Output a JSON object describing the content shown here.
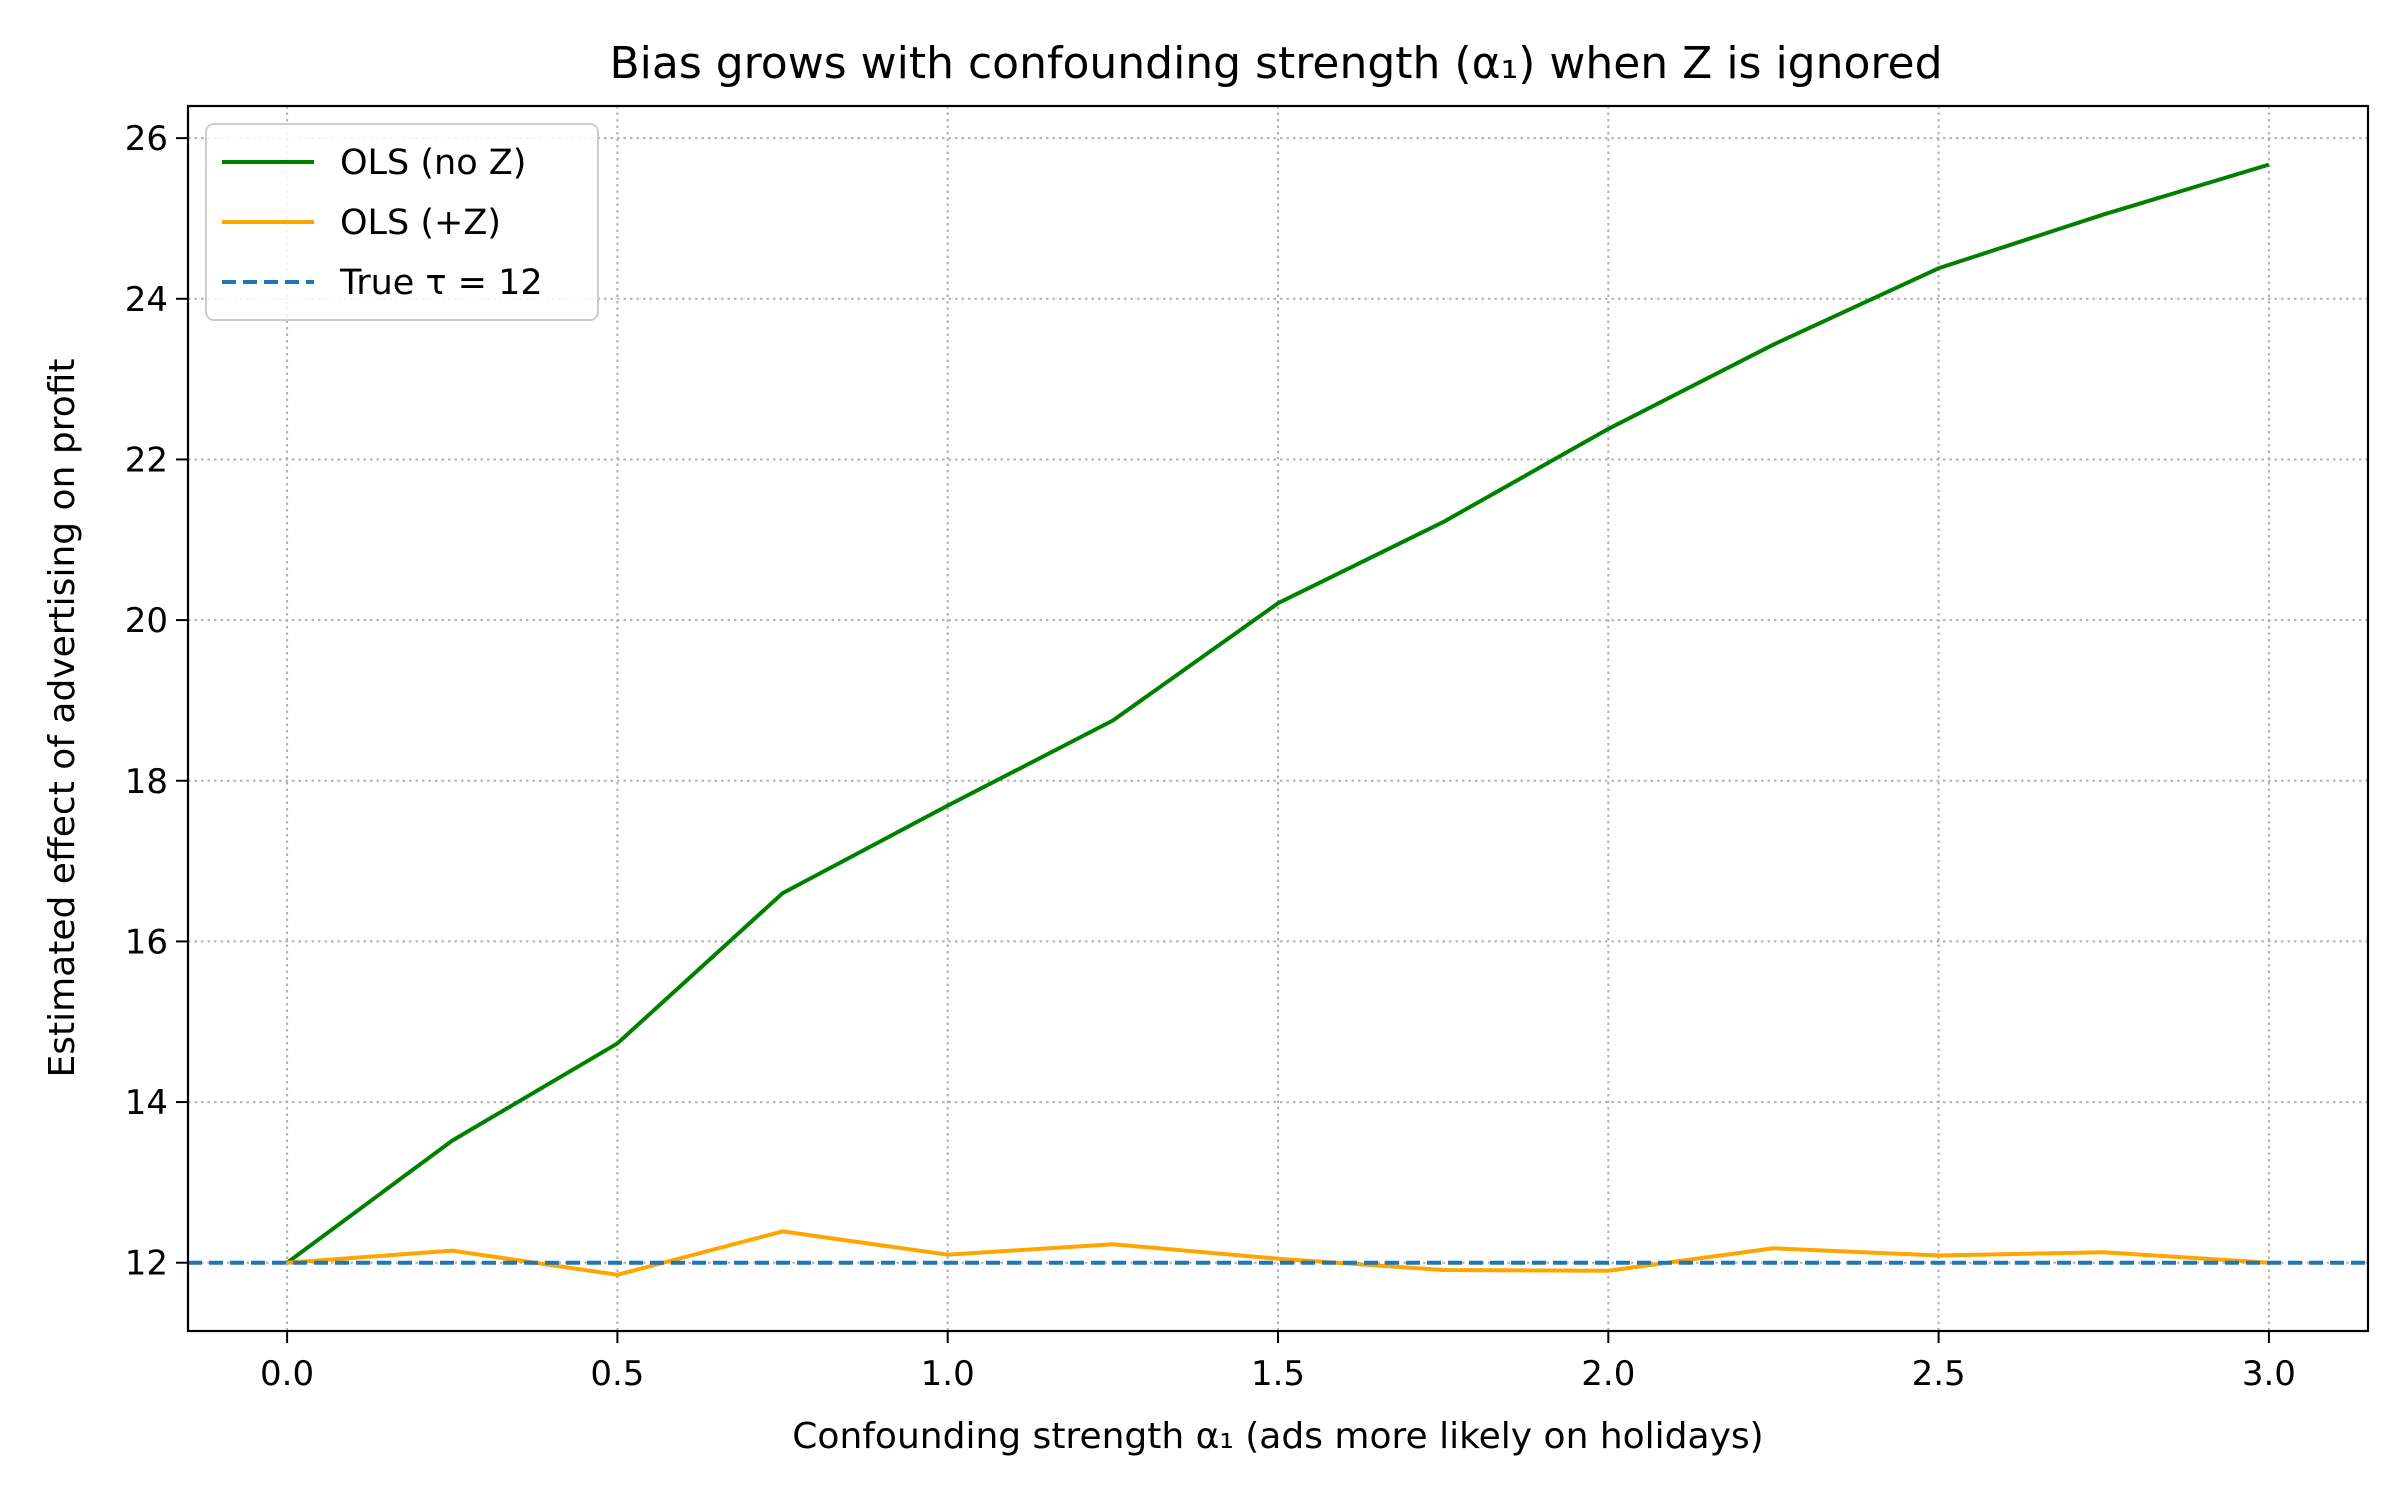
{
  "chart_data": {
    "type": "line",
    "title": "Bias grows with confounding strength (α₁) when Z is ignored",
    "xlabel": "Confounding strength  α₁  (ads more likely on holidays)",
    "ylabel": "Estimated effect of advertising on profit",
    "xlim": [
      -0.15,
      3.15
    ],
    "ylim": [
      11.15,
      26.4
    ],
    "xticks": [
      0.0,
      0.5,
      1.0,
      1.5,
      2.0,
      2.5,
      3.0
    ],
    "xtick_labels": [
      "0.0",
      "0.5",
      "1.0",
      "1.5",
      "2.0",
      "2.5",
      "3.0"
    ],
    "yticks": [
      12,
      14,
      16,
      18,
      20,
      22,
      24,
      26
    ],
    "ytick_labels": [
      "12",
      "14",
      "16",
      "18",
      "20",
      "22",
      "24",
      "26"
    ],
    "grid": true,
    "legend_position": "top-left",
    "x": [
      0.0,
      0.25,
      0.5,
      0.75,
      1.0,
      1.25,
      1.5,
      1.75,
      2.0,
      2.25,
      2.5,
      2.75,
      3.0
    ],
    "series": [
      {
        "name": "OLS (no Z)",
        "color": "#008000",
        "style": "solid",
        "values": [
          12.0,
          13.52,
          14.73,
          16.6,
          17.69,
          18.75,
          20.21,
          21.22,
          22.38,
          23.43,
          24.38,
          25.05,
          25.67
        ]
      },
      {
        "name": "OLS (+Z)",
        "color": "#ffa500",
        "style": "solid",
        "values": [
          12.0,
          12.15,
          11.85,
          12.39,
          12.1,
          12.23,
          12.05,
          11.91,
          11.9,
          12.18,
          12.09,
          12.13,
          12.0
        ]
      }
    ],
    "reference_lines": [
      {
        "name": "True τ = 12",
        "orientation": "horizontal",
        "y": 12,
        "color": "#1f77b4",
        "style": "dashed"
      }
    ]
  }
}
